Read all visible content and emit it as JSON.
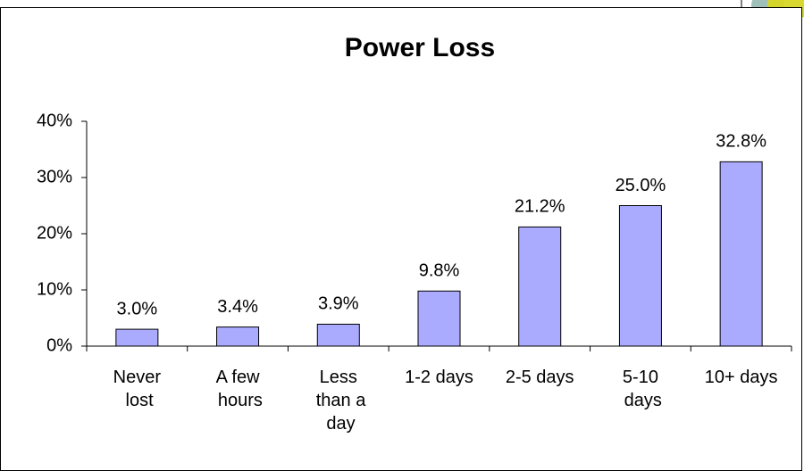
{
  "chart_data": {
    "type": "bar",
    "title": "Power Loss",
    "categories": [
      "Never lost",
      "A few hours",
      "Less than a day",
      "1-2 days",
      "2-5 days",
      "5-10 days",
      "10+ days"
    ],
    "values": [
      3.0,
      3.4,
      3.9,
      9.8,
      21.2,
      25.0,
      32.8
    ],
    "value_labels": [
      "3.0%",
      "3.4%",
      "3.9%",
      "9.8%",
      "21.2%",
      "25.0%",
      "32.8%"
    ],
    "color": "#aaaaff",
    "ylim": [
      0,
      40
    ],
    "yticks": [
      {
        "value": 0,
        "label": "0%"
      },
      {
        "value": 10,
        "label": "10%"
      },
      {
        "value": 20,
        "label": "20%"
      },
      {
        "value": 30,
        "label": "30%"
      },
      {
        "value": 40,
        "label": "40%"
      }
    ],
    "grid": false
  }
}
